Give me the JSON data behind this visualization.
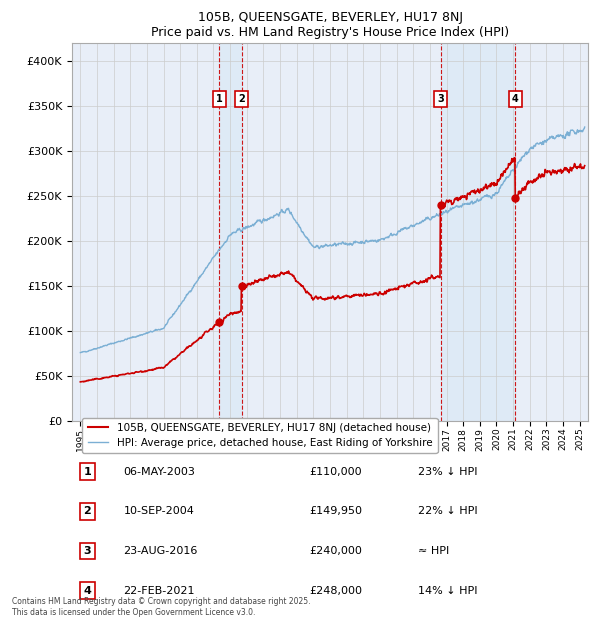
{
  "title": "105B, QUEENSGATE, BEVERLEY, HU17 8NJ",
  "subtitle": "Price paid vs. HM Land Registry's House Price Index (HPI)",
  "legend_property": "105B, QUEENSGATE, BEVERLEY, HU17 8NJ (detached house)",
  "legend_hpi": "HPI: Average price, detached house, East Riding of Yorkshire",
  "footer": "Contains HM Land Registry data © Crown copyright and database right 2025.\nThis data is licensed under the Open Government Licence v3.0.",
  "transactions": [
    {
      "num": 1,
      "date": "06-MAY-2003",
      "price": 110000,
      "note": "23% ↓ HPI",
      "year": 2003.35
    },
    {
      "num": 2,
      "date": "10-SEP-2004",
      "price": 149950,
      "note": "22% ↓ HPI",
      "year": 2004.69
    },
    {
      "num": 3,
      "date": "23-AUG-2016",
      "price": 240000,
      "note": "≈ HPI",
      "year": 2016.64
    },
    {
      "num": 4,
      "date": "22-FEB-2021",
      "price": 248000,
      "note": "14% ↓ HPI",
      "year": 2021.14
    }
  ],
  "ylim": [
    0,
    420000
  ],
  "yticks": [
    0,
    50000,
    100000,
    150000,
    200000,
    250000,
    300000,
    350000,
    400000
  ],
  "ytick_labels": [
    "£0",
    "£50K",
    "£100K",
    "£150K",
    "£200K",
    "£250K",
    "£300K",
    "£350K",
    "£400K"
  ],
  "xlim": [
    1994.5,
    2025.5
  ],
  "property_color": "#cc0000",
  "hpi_color": "#7bafd4",
  "vline_color": "#cc0000",
  "shade_color": "#d8e8f5",
  "background_color": "#e8eef8",
  "grid_color": "#cccccc",
  "shade_alpha": 0.6
}
